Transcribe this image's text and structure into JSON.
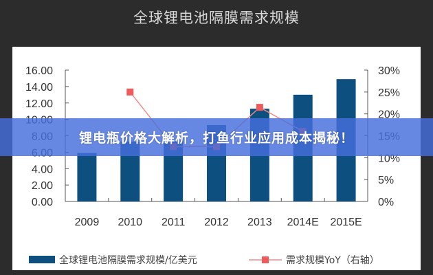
{
  "banner": {
    "text": "锂电瓶价格大解析，打鱼行业应用成本揭秘！"
  },
  "chart_data": {
    "type": "bar",
    "title": "全球锂电池隔膜需求规模",
    "categories": [
      "2009",
      "2010",
      "2011",
      "2012",
      "2013",
      "2014E",
      "2015E"
    ],
    "series": [
      {
        "name": "全球锂电池隔膜需求规模/亿美元",
        "type": "bar",
        "axis": "left",
        "color": "#0d5080",
        "values": [
          5.9,
          7.3,
          7.3,
          9.3,
          11.3,
          13.0,
          14.9
        ]
      },
      {
        "name": "需求规模YoY（右轴）",
        "type": "line",
        "axis": "right",
        "color": "#f05a5a",
        "values": [
          null,
          25,
          12.5,
          12.5,
          21.5,
          16,
          null
        ]
      }
    ],
    "yleft": {
      "ylim": [
        0,
        16
      ],
      "ticks": [
        "0.00",
        "2.00",
        "4.00",
        "6.00",
        "8.00",
        "10.00",
        "12.00",
        "14.00",
        "16.00"
      ]
    },
    "yright": {
      "ylim": [
        0,
        30
      ],
      "ticks": [
        "0%",
        "5%",
        "10%",
        "15%",
        "20%",
        "25%",
        "30%"
      ]
    },
    "legend": "bottom",
    "grid": false
  }
}
